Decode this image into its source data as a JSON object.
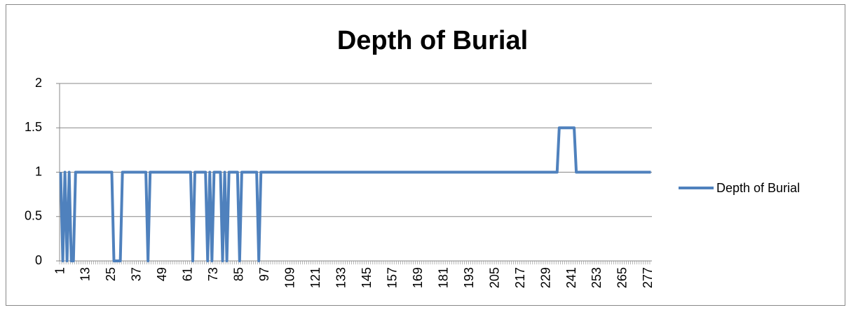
{
  "chart_data": {
    "type": "line",
    "title": "Depth of Burial",
    "categories": [
      1,
      null,
      null,
      null,
      null,
      null,
      null,
      null,
      null,
      null,
      null,
      null,
      13,
      null,
      null,
      null,
      null,
      null,
      null,
      null,
      null,
      null,
      null,
      null,
      25,
      null,
      null,
      null,
      null,
      null,
      null,
      null,
      null,
      null,
      null,
      null,
      37,
      null,
      null,
      null,
      null,
      null,
      null,
      null,
      null,
      null,
      null,
      null,
      49,
      null,
      null,
      null,
      null,
      null,
      null,
      null,
      null,
      null,
      null,
      null,
      61,
      null,
      null,
      null,
      null,
      null,
      null,
      null,
      null,
      null,
      null,
      null,
      73,
      null,
      null,
      null,
      null,
      null,
      null,
      null,
      null,
      null,
      null,
      null,
      85,
      null,
      null,
      null,
      null,
      null,
      null,
      null,
      null,
      null,
      null,
      null,
      97,
      null,
      null,
      null,
      null,
      null,
      null,
      null,
      null,
      null,
      null,
      null,
      109,
      null,
      null,
      null,
      null,
      null,
      null,
      null,
      null,
      null,
      null,
      null,
      121,
      null,
      null,
      null,
      null,
      null,
      null,
      null,
      null,
      null,
      null,
      null,
      133,
      null,
      null,
      null,
      null,
      null,
      null,
      null,
      null,
      null,
      null,
      null,
      145,
      null,
      null,
      null,
      null,
      null,
      null,
      null,
      null,
      null,
      null,
      null,
      157,
      null,
      null,
      null,
      null,
      null,
      null,
      null,
      null,
      null,
      null,
      null,
      169,
      null,
      null,
      null,
      null,
      null,
      null,
      null,
      null,
      null,
      null,
      null,
      181,
      null,
      null,
      null,
      null,
      null,
      null,
      null,
      null,
      null,
      null,
      null,
      193,
      null,
      null,
      null,
      null,
      null,
      null,
      null,
      null,
      null,
      null,
      null,
      205,
      null,
      null,
      null,
      null,
      null,
      null,
      null,
      null,
      null,
      null,
      null,
      217,
      null,
      null,
      null,
      null,
      null,
      null,
      null,
      null,
      null,
      null,
      null,
      229,
      null,
      null,
      null,
      null,
      null,
      null,
      null,
      null,
      null,
      null,
      null,
      241,
      null,
      null,
      null,
      null,
      null,
      null,
      null,
      null,
      null,
      null,
      null,
      253,
      null,
      null,
      null,
      null,
      null,
      null,
      null,
      null,
      null,
      null,
      null,
      265,
      null,
      null,
      null,
      null,
      null,
      null,
      null,
      null,
      null,
      null,
      null,
      277,
      null
    ],
    "series": [
      {
        "name": "Depth of Burial",
        "color": "#4f81bd",
        "values": [
          1,
          0,
          1,
          0,
          1,
          0,
          0,
          1,
          1,
          1,
          1,
          1,
          1,
          1,
          1,
          1,
          1,
          1,
          1,
          1,
          1,
          1,
          1,
          1,
          1,
          0,
          0,
          0,
          0,
          1,
          1,
          1,
          1,
          1,
          1,
          1,
          1,
          1,
          1,
          1,
          1,
          0,
          1,
          1,
          1,
          1,
          1,
          1,
          1,
          1,
          1,
          1,
          1,
          1,
          1,
          1,
          1,
          1,
          1,
          1,
          1,
          1,
          0,
          1,
          1,
          1,
          1,
          1,
          1,
          0,
          1,
          0,
          1,
          1,
          1,
          1,
          0,
          1,
          0,
          1,
          1,
          1,
          1,
          1,
          0,
          1,
          1,
          1,
          1,
          1,
          1,
          1,
          1,
          0,
          1,
          1,
          1,
          1,
          1,
          1,
          1,
          1,
          1,
          1,
          1,
          1,
          1,
          1,
          1,
          1,
          1,
          1,
          1,
          1,
          1,
          1,
          1,
          1,
          1,
          1,
          1,
          1,
          1,
          1,
          1,
          1,
          1,
          1,
          1,
          1,
          1,
          1,
          1,
          1,
          1,
          1,
          1,
          1,
          1,
          1,
          1,
          1,
          1,
          1,
          1,
          1,
          1,
          1,
          1,
          1,
          1,
          1,
          1,
          1,
          1,
          1,
          1,
          1,
          1,
          1,
          1,
          1,
          1,
          1,
          1,
          1,
          1,
          1,
          1,
          1,
          1,
          1,
          1,
          1,
          1,
          1,
          1,
          1,
          1,
          1,
          1,
          1,
          1,
          1,
          1,
          1,
          1,
          1,
          1,
          1,
          1,
          1,
          1,
          1,
          1,
          1,
          1,
          1,
          1,
          1,
          1,
          1,
          1,
          1,
          1,
          1,
          1,
          1,
          1,
          1,
          1,
          1,
          1,
          1,
          1,
          1,
          1,
          1,
          1,
          1,
          1,
          1,
          1,
          1,
          1,
          1,
          1,
          1,
          1,
          1,
          1,
          1,
          1,
          1,
          1.5,
          1.5,
          1.5,
          1.5,
          1.5,
          1.5,
          1.5,
          1.5,
          1,
          1,
          1,
          1,
          1,
          1,
          1,
          1,
          1,
          1,
          1,
          1,
          1,
          1,
          1,
          1,
          1,
          1,
          1,
          1,
          1,
          1,
          1,
          1,
          1,
          1,
          1,
          1,
          1,
          1,
          1,
          1,
          1,
          1,
          1,
          1
        ]
      }
    ],
    "ylim": [
      0,
      2
    ],
    "yticks": [
      0,
      0.5,
      1,
      1.5,
      2
    ],
    "grid": true,
    "legend": "right"
  }
}
